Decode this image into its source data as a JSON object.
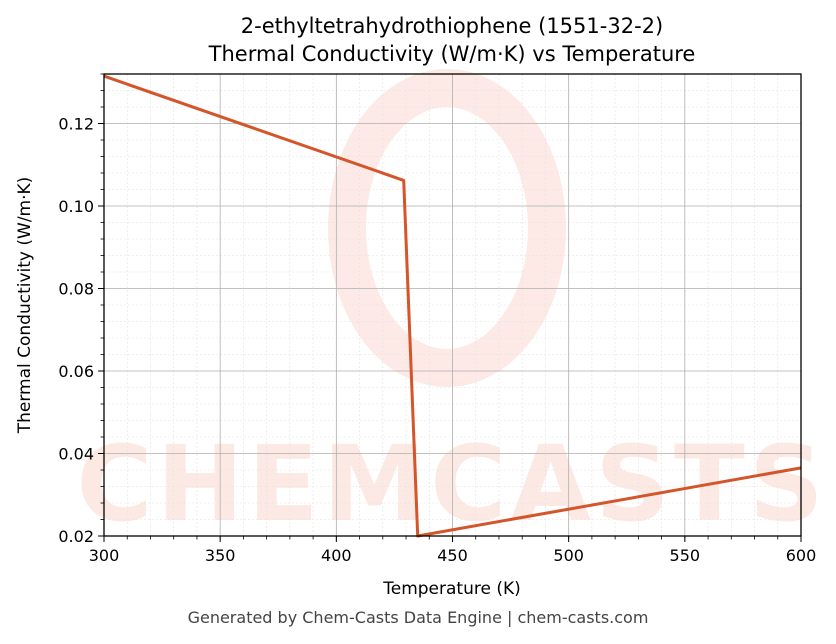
{
  "chart_data": {
    "type": "line",
    "title": "2-ethyltetrahydrothiophene (1551-32-2)",
    "subtitle": "Thermal Conductivity (W/m·K) vs Temperature",
    "xlabel": "Temperature (K)",
    "ylabel": "Thermal Conductivity (W/m·K)",
    "xlim": [
      300,
      600
    ],
    "ylim": [
      0.02,
      0.132
    ],
    "xticks": [
      300,
      350,
      400,
      450,
      500,
      550,
      600
    ],
    "yticks": [
      0.02,
      0.04,
      0.06,
      0.08,
      0.1,
      0.12
    ],
    "ytick_labels": [
      "0.02",
      "0.04",
      "0.06",
      "0.08",
      "0.10",
      "0.12"
    ],
    "grid": true,
    "series": [
      {
        "color": "#d4552a",
        "x": [
          300,
          429,
          435,
          600
        ],
        "y": [
          0.1315,
          0.1062,
          0.02,
          0.0365
        ]
      }
    ]
  },
  "watermark": "CHEMCASTS",
  "footer": "Generated by Chem-Casts Data Engine | chem-casts.com"
}
